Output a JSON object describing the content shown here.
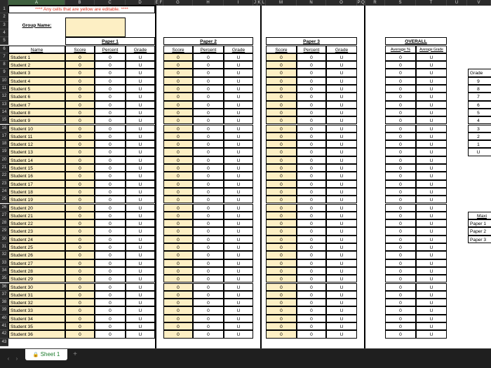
{
  "notice": "**** Any cells that are yellow are editable. ****",
  "group_label": "Group Name:",
  "columns": [
    "A",
    "B",
    "C",
    "D",
    "E",
    "F",
    "G",
    "H",
    "I",
    "J",
    "K",
    "L",
    "M",
    "N",
    "O",
    "P",
    "Q",
    "R",
    "S",
    "T",
    "U",
    "V"
  ],
  "name_header": "Name",
  "papers": [
    {
      "title": "Paper 1",
      "score": "Score",
      "percent": "Percent",
      "grade": "Grade"
    },
    {
      "title": "Paper 2",
      "score": "Score",
      "percent": "Percent",
      "grade": "Grade"
    },
    {
      "title": "Paper 3",
      "score": "Score",
      "percent": "Percent",
      "grade": "Grade"
    }
  ],
  "overall": {
    "title": "OVERALL",
    "average_percent": "Average %",
    "average_grade": "Average Grade"
  },
  "default_score": "0",
  "default_percent": "0",
  "default_grade": "U",
  "students": [
    "Student 1",
    "Student 2",
    "Student 3",
    "Student 4",
    "Student 5",
    "Student 6",
    "Student 7",
    "Student 8",
    "Student 9",
    "Student 10",
    "Student 11",
    "Student 12",
    "Student 13",
    "Student 14",
    "Student 15",
    "Student 16",
    "Student 17",
    "Student 18",
    "Student 19",
    "Student 20",
    "Student 21",
    "Student 22",
    "Student 23",
    "Student 24",
    "Student 25",
    "Student 26",
    "Student 27",
    "Student 28",
    "Student 29",
    "Student 30",
    "Student 31",
    "Student 32",
    "Student 33",
    "Student 34",
    "Student 35",
    "Student 36"
  ],
  "grade_table": {
    "header": "Grade",
    "values": [
      "9",
      "8",
      "7",
      "6",
      "5",
      "4",
      "3",
      "2",
      "1",
      "U"
    ]
  },
  "max_table": {
    "header": "Maxi",
    "rows": [
      "Paper 1",
      "Paper 2",
      "Paper 3"
    ]
  },
  "sheet_tab": "Sheet 1",
  "nav_prev": "‹",
  "nav_next": "›",
  "add_sheet": "+",
  "colors": {
    "yellow": "#fdefc4",
    "notice": "#e0301e",
    "header_bg": "#2b2b2b",
    "status_bg": "#1f1f1f",
    "tab_text": "#1a7a2a"
  }
}
